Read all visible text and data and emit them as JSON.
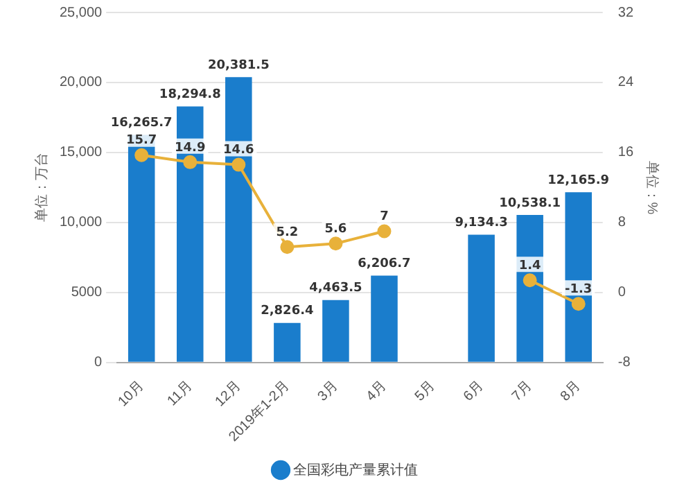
{
  "chart_data": {
    "type": "bar",
    "categories": [
      "10月",
      "11月",
      "12月",
      "2019年1-2月",
      "3月",
      "4月",
      "5月",
      "6月",
      "7月",
      "8月"
    ],
    "ylabel": "单位：万台",
    "y2label": "单位：%",
    "series": [
      {
        "name": "全国彩电产量累计值",
        "color": "#1a7dcc",
        "values": [
          16265.7,
          18294.8,
          20381.5,
          2826.4,
          4463.5,
          6206.7,
          null,
          9134.3,
          10538.1,
          12165.9
        ],
        "value_labels": [
          "16,265.7",
          "18,294.8",
          "20,381.5",
          "2,826.4",
          "4,463.5",
          "6,206.7",
          null,
          "9,134.3",
          "10,538.1",
          "12,165.9"
        ]
      },
      {
        "type": "line",
        "axis": "y2",
        "color": "#e8b13a",
        "marker": "circle",
        "values": [
          15.7,
          14.9,
          14.6,
          5.2,
          5.6,
          7,
          null,
          null,
          1.4,
          -1.3
        ],
        "value_labels": [
          "15.7",
          "14.9",
          "14.6",
          "5.2",
          "5.6",
          "7",
          null,
          null,
          "1.4",
          "-1.3"
        ]
      }
    ],
    "ylim": [
      0,
      25000
    ],
    "yticks": [
      0,
      5000,
      {
        "value": 10000,
        "label": "10,000"
      },
      {
        "value": 15000,
        "label": "15,000"
      },
      {
        "value": 20000,
        "label": "20,000"
      },
      {
        "value": 25000,
        "label": "25,000"
      }
    ],
    "y2lim": [
      -8,
      32
    ],
    "y2ticks": [
      -8,
      0,
      8,
      16,
      24,
      32
    ],
    "grid": "y",
    "legend": "bottom"
  }
}
